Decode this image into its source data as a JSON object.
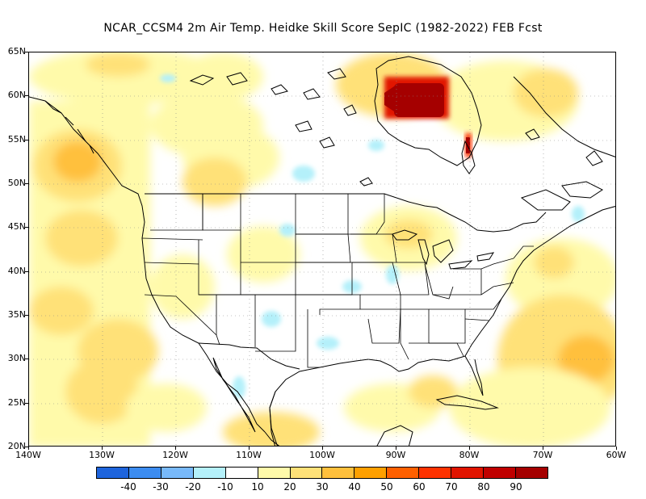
{
  "title": "NCAR_CCSM4  2m Air Temp. Heidke Skill Score SepIC (1982-2022) FEB Fcst",
  "map": {
    "lat_labels": [
      "65N",
      "60N",
      "55N",
      "50N",
      "45N",
      "40N",
      "35N",
      "30N",
      "25N",
      "20N"
    ],
    "lat_values": [
      65,
      60,
      55,
      50,
      45,
      40,
      35,
      30,
      25,
      20
    ],
    "lon_labels": [
      "140W",
      "130W",
      "120W",
      "110W",
      "100W",
      "90W",
      "80W",
      "70W",
      "60W"
    ],
    "lon_values": [
      -140,
      -130,
      -120,
      -110,
      -100,
      -90,
      -80,
      -70,
      -60
    ],
    "lat_range": [
      20,
      65
    ],
    "lon_range": [
      -140,
      -60
    ],
    "gridlines": true
  },
  "colorbar": {
    "colors": [
      "#1e64dc",
      "#3c8cf0",
      "#78b9fa",
      "#b4f0fa",
      "#ffffff",
      "#fffaaa",
      "#ffe178",
      "#ffc03c",
      "#ffa000",
      "#ff6000",
      "#ff3200",
      "#e11400",
      "#c00000",
      "#a50000"
    ],
    "labels": [
      "-40",
      "-30",
      "-20",
      "-10",
      "10",
      "20",
      "30",
      "40",
      "50",
      "60",
      "70",
      "80",
      "90"
    ]
  }
}
